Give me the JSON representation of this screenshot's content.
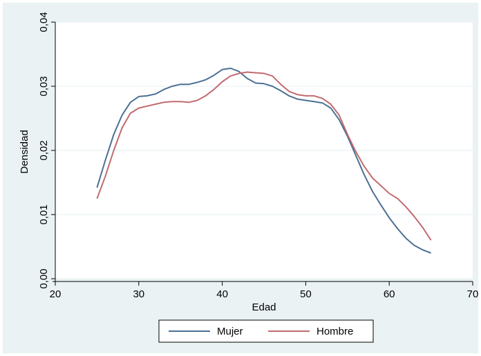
{
  "chart_data": {
    "type": "line",
    "title": "",
    "xlabel": "Edad",
    "ylabel": "Densidad",
    "xlim": [
      20,
      70
    ],
    "ylim": [
      0,
      0.04
    ],
    "x_ticks": [
      20,
      30,
      40,
      50,
      60,
      70
    ],
    "x_tick_labels": [
      "20",
      "30",
      "40",
      "50",
      "60",
      "70"
    ],
    "y_ticks": [
      0,
      0.01,
      0.02,
      0.03,
      0.04
    ],
    "y_tick_labels": [
      "0,00",
      "0,01",
      "0,02",
      "0,03",
      "0,04"
    ],
    "grid": "horizontal",
    "legend_position": "bottom",
    "series": [
      {
        "name": "Mujer",
        "color": "#4a6f93",
        "x": [
          25,
          26,
          27,
          28,
          29,
          30,
          31,
          32,
          33,
          34,
          35,
          36,
          37,
          38,
          39,
          40,
          41,
          42,
          43,
          44,
          45,
          46,
          47,
          48,
          49,
          50,
          51,
          52,
          53,
          54,
          55,
          56,
          57,
          58,
          59,
          60,
          61,
          62,
          63,
          64,
          65
        ],
        "y": [
          0.0142,
          0.0185,
          0.0225,
          0.0255,
          0.0275,
          0.0284,
          0.0285,
          0.0288,
          0.0295,
          0.03,
          0.0303,
          0.0303,
          0.0306,
          0.031,
          0.0317,
          0.0326,
          0.0328,
          0.0323,
          0.0312,
          0.0305,
          0.0304,
          0.03,
          0.0293,
          0.0285,
          0.028,
          0.0278,
          0.0276,
          0.0274,
          0.0266,
          0.0248,
          0.0222,
          0.0192,
          0.0162,
          0.0136,
          0.0115,
          0.0095,
          0.0078,
          0.0063,
          0.0052,
          0.0045,
          0.004
        ]
      },
      {
        "name": "Hombre",
        "color": "#c26a6e",
        "x": [
          25,
          26,
          27,
          28,
          29,
          30,
          31,
          32,
          33,
          34,
          35,
          36,
          37,
          38,
          39,
          40,
          41,
          42,
          43,
          44,
          45,
          46,
          47,
          48,
          49,
          50,
          51,
          52,
          53,
          54,
          55,
          56,
          57,
          58,
          59,
          60,
          61,
          62,
          63,
          64,
          65
        ],
        "y": [
          0.0125,
          0.016,
          0.02,
          0.0235,
          0.0258,
          0.0266,
          0.0269,
          0.0272,
          0.0275,
          0.0276,
          0.0276,
          0.0275,
          0.0278,
          0.0285,
          0.0295,
          0.0307,
          0.0316,
          0.032,
          0.0322,
          0.0321,
          0.032,
          0.0316,
          0.0303,
          0.0292,
          0.0287,
          0.0285,
          0.0285,
          0.0281,
          0.0272,
          0.0255,
          0.0225,
          0.0198,
          0.0175,
          0.0157,
          0.0145,
          0.0133,
          0.0125,
          0.0112,
          0.0097,
          0.008,
          0.006
        ]
      }
    ]
  }
}
